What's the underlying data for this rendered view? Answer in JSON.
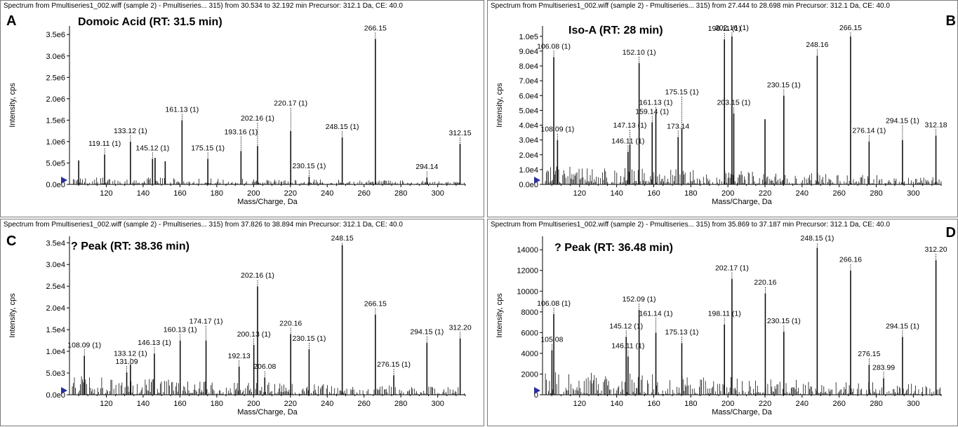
{
  "figure": {
    "panels": [
      {
        "letter": "A",
        "header": "Spectrum from Pmultiseries1_002.wiff (sample 2) - Pmultiseries... 315) from 30.534 to 32.192 min Precursor: 312.1 Da, CE: 40.0",
        "title": "Domoic Acid (RT: 31.5 min)",
        "xlabel": "Mass/Charge, Da",
        "ylabel": "Intensity, cps"
      },
      {
        "letter": "B",
        "header": "Spectrum from Pmultiseries1_002.wiff (sample 2) - Pmultiseries... 315) from 27.444 to 28.698 min Precursor: 312.1 Da, CE: 40.0",
        "title": "Iso-A (RT: 28 min)",
        "xlabel": "Mass/Charge, Da",
        "ylabel": "Intensity, cps"
      },
      {
        "letter": "C",
        "header": "Spectrum from Pmultiseries1_002.wiff (sample 2) - Pmultiseries... 315) from 37.826 to 38.894 min Precursor: 312.1 Da, CE: 40.0",
        "title": "? Peak  (RT: 38.36 min)",
        "xlabel": "Mass/Charge, Da",
        "ylabel": "Intensity, cps"
      },
      {
        "letter": "D",
        "header": "Spectrum from Pmultiseries1_002.wiff (sample 2) - Pmultiseries... 315) from 35.869 to 37.187 min Precursor: 312.1 Da, CE: 40.0",
        "title": "? Peak  (RT: 36.48 min)",
        "xlabel": "Mass/Charge, Da",
        "ylabel": "Intensity, cps"
      }
    ]
  },
  "colors": {
    "line": "#111111",
    "marker": "#2b2f9c",
    "border": "#7a7a7a"
  },
  "chart_data": [
    {
      "type": "line",
      "xlim": [
        100,
        315
      ],
      "xticks": [
        120,
        140,
        160,
        180,
        200,
        220,
        240,
        260,
        280,
        300
      ],
      "yticks": [
        0,
        500000,
        1000000,
        1500000,
        2000000,
        2500000,
        3000000,
        3500000
      ],
      "ytick_labels": [
        "0.0e0",
        "5.0e5",
        "1.0e6",
        "1.5e6",
        "2.0e6",
        "2.5e6",
        "3.0e6",
        "3.5e6"
      ],
      "ylim": [
        0,
        3700000
      ],
      "peaks": [
        {
          "x": 105.0,
          "y": 560000,
          "label": ""
        },
        {
          "x": 119.11,
          "y": 700000,
          "label": "119.11 (1)"
        },
        {
          "x": 133.12,
          "y": 1000000,
          "label": "133.12 (1)"
        },
        {
          "x": 145.12,
          "y": 600000,
          "label": "145.12 (1)"
        },
        {
          "x": 146.5,
          "y": 620000,
          "label": ""
        },
        {
          "x": 152.0,
          "y": 540000,
          "label": ""
        },
        {
          "x": 161.13,
          "y": 1500000,
          "label": "161.13 (1)"
        },
        {
          "x": 175.15,
          "y": 600000,
          "label": "175.15 (1)"
        },
        {
          "x": 193.16,
          "y": 780000,
          "label": "193.16 (1)"
        },
        {
          "x": 202.16,
          "y": 900000,
          "label": "202.16 (1)"
        },
        {
          "x": 220.17,
          "y": 1250000,
          "label": "220.17 (1)"
        },
        {
          "x": 230.15,
          "y": 180000,
          "label": "230.15 (1)"
        },
        {
          "x": 248.15,
          "y": 1100000,
          "label": "248.15 (1)"
        },
        {
          "x": 266.15,
          "y": 3400000,
          "label": "266.15"
        },
        {
          "x": 294.14,
          "y": 160000,
          "label": "294.14"
        },
        {
          "x": 312.15,
          "y": 950000,
          "label": "312.15"
        }
      ]
    },
    {
      "type": "line",
      "xlim": [
        100,
        315
      ],
      "xticks": [
        120,
        140,
        160,
        180,
        200,
        220,
        240,
        260,
        280,
        300
      ],
      "yticks": [
        0,
        10000,
        20000,
        30000,
        40000,
        50000,
        60000,
        70000,
        80000,
        90000,
        100000
      ],
      "ytick_labels": [
        "0.0e0",
        "1.0e4",
        "2.0e4",
        "3.0e4",
        "4.0e4",
        "5.0e4",
        "6.0e4",
        "7.0e4",
        "8.0e4",
        "9.0e4",
        "1.0e5"
      ],
      "ylim": [
        0,
        107000
      ],
      "peaks": [
        {
          "x": 106.08,
          "y": 86000,
          "label": "106.08 (1)"
        },
        {
          "x": 108.09,
          "y": 30000,
          "label": "108.09 (1)"
        },
        {
          "x": 146.11,
          "y": 22000,
          "label": "146.11 (1)"
        },
        {
          "x": 147.13,
          "y": 27000,
          "label": "147.13 (1)"
        },
        {
          "x": 152.1,
          "y": 82000,
          "label": "152.10 (1)"
        },
        {
          "x": 159.14,
          "y": 42000,
          "label": "159.14 (1)"
        },
        {
          "x": 161.13,
          "y": 48000,
          "label": "161.13 (1)"
        },
        {
          "x": 173.14,
          "y": 32000,
          "label": "173.14"
        },
        {
          "x": 175.15,
          "y": 38000,
          "label": "175.15 (1)"
        },
        {
          "x": 198.11,
          "y": 98000,
          "label": "198.11 (1)"
        },
        {
          "x": 202.16,
          "y": 100000,
          "label": "202.16 (1)"
        },
        {
          "x": 203.15,
          "y": 48000,
          "label": "203.15 (1)"
        },
        {
          "x": 220.0,
          "y": 44000,
          "label": ""
        },
        {
          "x": 230.15,
          "y": 60000,
          "label": "230.15 (1)"
        },
        {
          "x": 248.16,
          "y": 87000,
          "label": "248.16"
        },
        {
          "x": 266.15,
          "y": 100000,
          "label": "266.15"
        },
        {
          "x": 276.14,
          "y": 29000,
          "label": "276.14 (1)"
        },
        {
          "x": 294.15,
          "y": 30000,
          "label": "294.15 (1)"
        },
        {
          "x": 312.18,
          "y": 33000,
          "label": "312.18"
        }
      ]
    },
    {
      "type": "line",
      "xlim": [
        100,
        315
      ],
      "xticks": [
        120,
        140,
        160,
        180,
        200,
        220,
        240,
        260,
        280,
        300
      ],
      "yticks": [
        0,
        5000,
        10000,
        15000,
        20000,
        25000,
        30000,
        35000
      ],
      "ytick_labels": [
        "0.0e0",
        "5.0e3",
        "1.0e4",
        "1.5e4",
        "2.0e4",
        "2.5e4",
        "3.0e4",
        "3.5e4"
      ],
      "ylim": [
        0,
        36500
      ],
      "peaks": [
        {
          "x": 108.09,
          "y": 9000,
          "label": "108.09 (1)"
        },
        {
          "x": 131.09,
          "y": 5200,
          "label": "131.09"
        },
        {
          "x": 133.12,
          "y": 7000,
          "label": "133.12 (1)"
        },
        {
          "x": 146.13,
          "y": 9500,
          "label": "146.13 (1)"
        },
        {
          "x": 160.13,
          "y": 12500,
          "label": "160.13 (1)"
        },
        {
          "x": 174.17,
          "y": 12500,
          "label": "174.17 (1)"
        },
        {
          "x": 192.13,
          "y": 6500,
          "label": "192.13"
        },
        {
          "x": 200.13,
          "y": 11500,
          "label": "200.13 (1)"
        },
        {
          "x": 202.16,
          "y": 25000,
          "label": "202.16 (1)"
        },
        {
          "x": 206.08,
          "y": 4000,
          "label": "206.08"
        },
        {
          "x": 220.16,
          "y": 14000,
          "label": "220.16"
        },
        {
          "x": 230.15,
          "y": 10500,
          "label": "230.15 (1)"
        },
        {
          "x": 248.15,
          "y": 34500,
          "label": "248.15"
        },
        {
          "x": 266.15,
          "y": 18500,
          "label": "266.15"
        },
        {
          "x": 276.15,
          "y": 4500,
          "label": "276.15 (1)"
        },
        {
          "x": 294.15,
          "y": 12000,
          "label": "294.15 (1)"
        },
        {
          "x": 312.2,
          "y": 13000,
          "label": "312.20"
        }
      ]
    },
    {
      "type": "line",
      "xlim": [
        100,
        315
      ],
      "xticks": [
        120,
        140,
        160,
        180,
        200,
        220,
        240,
        260,
        280,
        300
      ],
      "yticks": [
        0,
        2000,
        4000,
        6000,
        8000,
        10000,
        12000,
        14000
      ],
      "ytick_labels": [
        "0",
        "2000",
        "4000",
        "6000",
        "8000",
        "10000",
        "12000",
        "14000"
      ],
      "ylim": [
        0,
        15300
      ],
      "peaks": [
        {
          "x": 105.08,
          "y": 4300,
          "label": "105.08"
        },
        {
          "x": 106.08,
          "y": 7800,
          "label": "106.08 (1)"
        },
        {
          "x": 145.12,
          "y": 5600,
          "label": "145.12 (1)"
        },
        {
          "x": 146.11,
          "y": 3700,
          "label": "146.11 (1)"
        },
        {
          "x": 152.09,
          "y": 8200,
          "label": "152.09 (1)"
        },
        {
          "x": 161.14,
          "y": 6000,
          "label": "161.14 (1)"
        },
        {
          "x": 175.13,
          "y": 5000,
          "label": "175.13 (1)"
        },
        {
          "x": 198.11,
          "y": 6800,
          "label": "198.11 (1)"
        },
        {
          "x": 202.17,
          "y": 11200,
          "label": "202.17 (1)"
        },
        {
          "x": 220.16,
          "y": 9800,
          "label": "220.16"
        },
        {
          "x": 230.15,
          "y": 6100,
          "label": "230.15 (1)"
        },
        {
          "x": 248.15,
          "y": 14200,
          "label": "248.15 (1)"
        },
        {
          "x": 266.16,
          "y": 12000,
          "label": "266.16"
        },
        {
          "x": 276.15,
          "y": 2900,
          "label": "276.15"
        },
        {
          "x": 283.99,
          "y": 1600,
          "label": "283.99"
        },
        {
          "x": 294.15,
          "y": 5600,
          "label": "294.15 (1)"
        },
        {
          "x": 312.2,
          "y": 13000,
          "label": "312.20"
        }
      ]
    }
  ]
}
